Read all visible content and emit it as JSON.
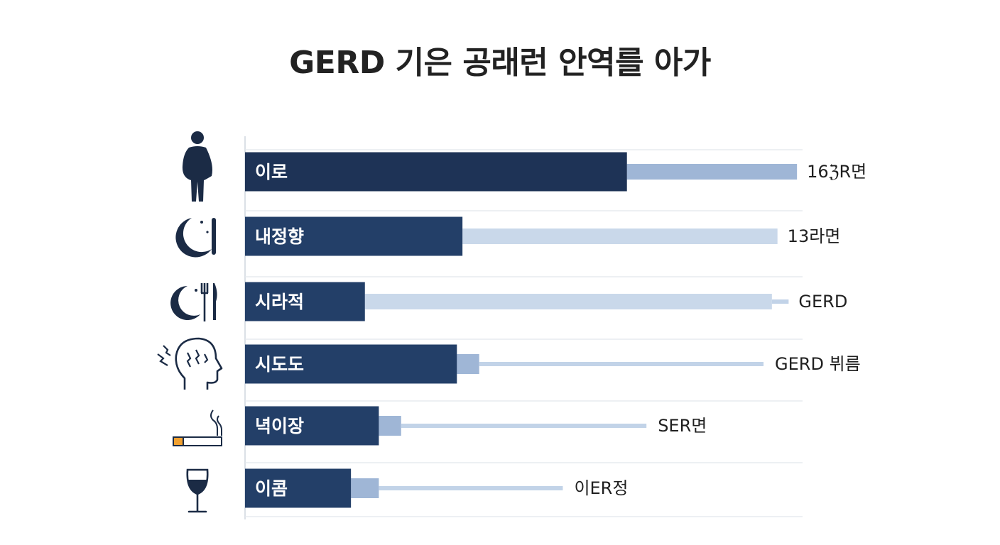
{
  "title": "GERD 기은 공래런 안역를 아가",
  "colors": {
    "bar_dark": "#1e3356",
    "bar_dark_alt": "#233f68",
    "bar_mid": "#9fb6d6",
    "bar_light": "#c9d8ea",
    "line": "#c2d3e8",
    "icon": "#1b2b45",
    "cigarette_tip": "#f0a030",
    "grid": "#e2e6ec",
    "axis": "#cfd5de"
  },
  "chart_data": {
    "type": "bar",
    "orientation": "horizontal",
    "title": "GERD 기은 공래런 안역를 아가",
    "xlabel": "",
    "ylabel": "",
    "xlim": [
      0,
      100
    ],
    "grid": true,
    "legend": "none",
    "categories": [
      "이로",
      "내정향",
      "시라적",
      "시도도",
      "녁이장",
      "이콤"
    ],
    "end_labels": [
      "16ℨR면",
      "13라면",
      "GERD",
      "GERD 뷔름",
      "SER면",
      "이ER정"
    ],
    "icons": [
      "person-icon",
      "moon-sleep-icon",
      "moon-fork-knife-icon",
      "head-stress-icon",
      "cigarette-icon",
      "wine-glass-icon"
    ],
    "series": [
      {
        "values": [
          68.5,
          39,
          21.5,
          38,
          24,
          19
        ]
      },
      {
        "values": [
          99,
          95.5,
          94.5,
          93,
          72,
          57
        ]
      }
    ],
    "row_styles": [
      {
        "ext_style": "band",
        "ext_start": 68.5,
        "ext_end": 99,
        "ext_color": "#9fb6d6"
      },
      {
        "ext_style": "band",
        "ext_start": 39,
        "ext_end": 95.5,
        "ext_color": "#c9d8ea"
      },
      {
        "ext_style": "band",
        "ext_start": 21.5,
        "ext_end": 94.5,
        "ext_color": "#c9d8ea",
        "tick_end": 97.5
      },
      {
        "ext_style": "line",
        "stub_end": 42,
        "ext_end": 93
      },
      {
        "ext_style": "line",
        "stub_end": 28,
        "ext_end": 72
      },
      {
        "ext_style": "line",
        "stub_end": 24,
        "ext_end": 57
      }
    ]
  }
}
